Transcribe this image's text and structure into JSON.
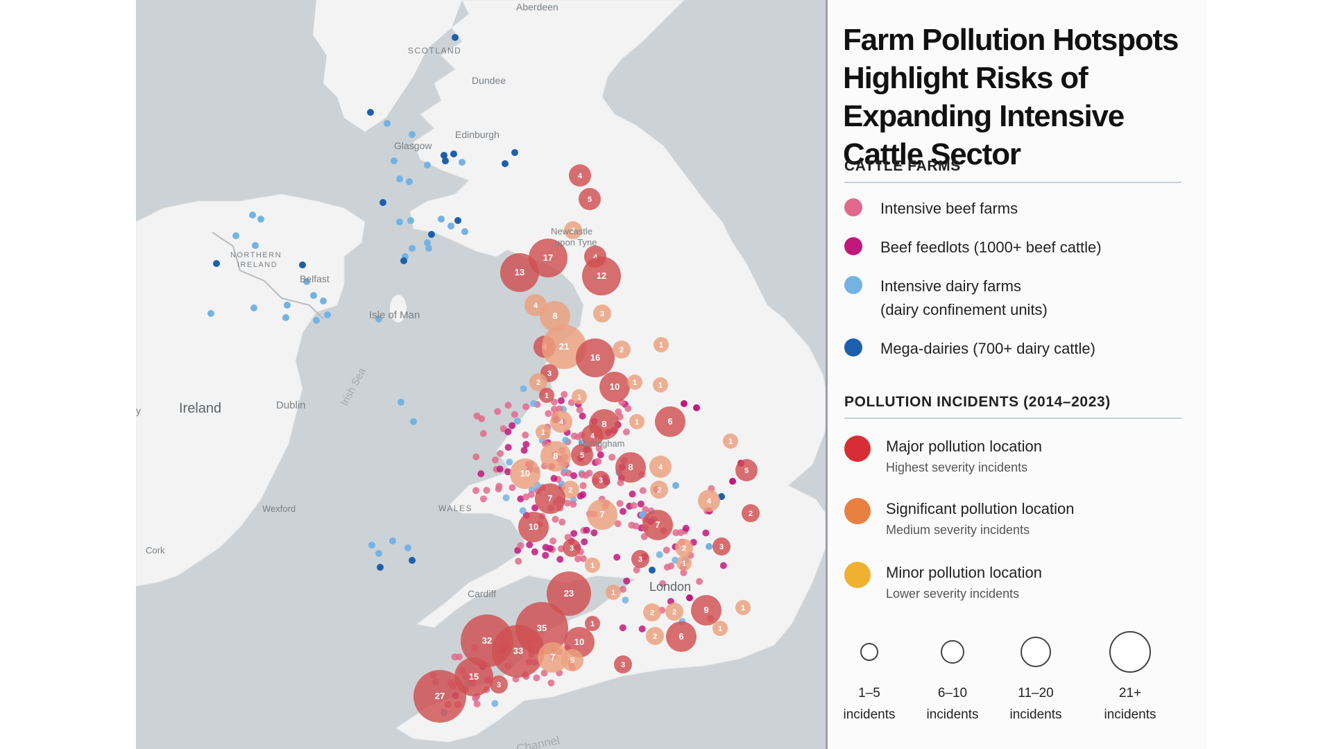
{
  "title": "Farm Pollution Hotspots Highlight Risks of Expanding Intensive Cattle Sector",
  "legend": {
    "cattle_farms_heading": "CATTLE FARMS",
    "cattle_farms": [
      {
        "label": "Intensive beef farms",
        "color": "#e06a8c"
      },
      {
        "label": "Beef feedlots (1000+ beef cattle)",
        "color": "#c2187b"
      },
      {
        "label": "Intensive dairy farms",
        "label2": "(dairy confinement units)",
        "color": "#72b3e4"
      },
      {
        "label": "Mega-dairies (700+ dairy cattle)",
        "color": "#1c5fad"
      }
    ],
    "pollution_heading": "POLLUTION INCIDENTS (2014–2023)",
    "pollution": [
      {
        "label": "Major pollution location",
        "sub": "Highest severity incidents",
        "color": "#d92d35"
      },
      {
        "label": "Significant pollution location",
        "sub": "Medium severity incidents",
        "color": "#e8803f"
      },
      {
        "label": "Minor pollution location",
        "sub": "Lower severity incidents",
        "color": "#f0b030"
      }
    ],
    "sizes": [
      {
        "label1": "1–5",
        "label2": "incidents"
      },
      {
        "label1": "6–10",
        "label2": "incidents"
      },
      {
        "label1": "11–20",
        "label2": "incidents"
      },
      {
        "label1": "21+",
        "label2": "incidents"
      }
    ]
  },
  "map_labels": {
    "aberdeen": "Aberdeen",
    "scotland": "SCOTLAND",
    "dundee": "Dundee",
    "edinburgh": "Edinburgh",
    "glasgow": "Glasgow",
    "newcastle1": "Newcastle",
    "newcastle2": "upon Tyne",
    "northern_ireland1": "NORTHERN",
    "northern_ireland2": "IRELAND",
    "belfast": "Belfast",
    "isle_of_man": "Isle of Man",
    "ireland": "Ireland",
    "dublin": "Dublin",
    "irish_sea": "Irish Sea",
    "nottingham": "Nottingham",
    "wales": "WALES",
    "wexford": "Wexford",
    "cork": "Cork",
    "cardiff": "Cardiff",
    "london": "London",
    "channel": "Channel",
    "edge_y": "y"
  },
  "incidents": [
    {
      "count": 4,
      "severity": "major"
    },
    {
      "count": 5,
      "severity": "major"
    },
    {
      "count": 2,
      "severity": "significant"
    },
    {
      "count": 17,
      "severity": "major"
    },
    {
      "count": 13,
      "severity": "major"
    },
    {
      "count": 4,
      "severity": "major"
    },
    {
      "count": 12,
      "severity": "major"
    },
    {
      "count": 4,
      "severity": "significant"
    },
    {
      "count": 8,
      "severity": "significant"
    },
    {
      "count": 3,
      "severity": "significant"
    },
    {
      "count": 4,
      "severity": "major"
    },
    {
      "count": 21,
      "severity": "significant"
    },
    {
      "count": 16,
      "severity": "major"
    },
    {
      "count": 2,
      "severity": "significant"
    },
    {
      "count": 1,
      "severity": "significant"
    },
    {
      "count": 3,
      "severity": "major"
    },
    {
      "count": 2,
      "severity": "significant"
    },
    {
      "count": 1,
      "severity": "major"
    },
    {
      "count": 1,
      "severity": "significant"
    },
    {
      "count": 10,
      "severity": "major"
    },
    {
      "count": 1,
      "severity": "significant"
    },
    {
      "count": 1,
      "severity": "significant"
    },
    {
      "count": 4,
      "severity": "significant"
    },
    {
      "count": 8,
      "severity": "major"
    },
    {
      "count": 1,
      "severity": "significant"
    },
    {
      "count": 6,
      "severity": "major"
    },
    {
      "count": 1,
      "severity": "significant"
    },
    {
      "count": 4,
      "severity": "major"
    },
    {
      "count": 1,
      "severity": "significant"
    },
    {
      "count": 5,
      "severity": "major"
    },
    {
      "count": 8,
      "severity": "significant"
    },
    {
      "count": 10,
      "severity": "significant"
    },
    {
      "count": 8,
      "severity": "major"
    },
    {
      "count": 4,
      "severity": "significant"
    },
    {
      "count": 5,
      "severity": "major"
    },
    {
      "count": 3,
      "severity": "major"
    },
    {
      "count": 2,
      "severity": "significant"
    },
    {
      "count": 2,
      "severity": "significant"
    },
    {
      "count": 7,
      "severity": "major"
    },
    {
      "count": 4,
      "severity": "significant"
    },
    {
      "count": 7,
      "severity": "significant"
    },
    {
      "count": 2,
      "severity": "major"
    },
    {
      "count": 10,
      "severity": "major"
    },
    {
      "count": 7,
      "severity": "major"
    },
    {
      "count": 3,
      "severity": "major"
    },
    {
      "count": 2,
      "severity": "significant"
    },
    {
      "count": 3,
      "severity": "major"
    },
    {
      "count": 1,
      "severity": "significant"
    },
    {
      "count": 3,
      "severity": "major"
    },
    {
      "count": 1,
      "severity": "significant"
    },
    {
      "count": 23,
      "severity": "major"
    },
    {
      "count": 1,
      "severity": "significant"
    },
    {
      "count": 9,
      "severity": "major"
    },
    {
      "count": 2,
      "severity": "significant"
    },
    {
      "count": 2,
      "severity": "significant"
    },
    {
      "count": 1,
      "severity": "significant"
    },
    {
      "count": 1,
      "severity": "major"
    },
    {
      "count": 35,
      "severity": "major"
    },
    {
      "count": 32,
      "severity": "major"
    },
    {
      "count": 33,
      "severity": "major"
    },
    {
      "count": 10,
      "severity": "major"
    },
    {
      "count": 2,
      "severity": "significant"
    },
    {
      "count": 6,
      "severity": "major"
    },
    {
      "count": 1,
      "severity": "significant"
    },
    {
      "count": 7,
      "severity": "significant"
    },
    {
      "count": 5,
      "severity": "significant"
    },
    {
      "count": 15,
      "severity": "major"
    },
    {
      "count": 3,
      "severity": "major"
    },
    {
      "count": 3,
      "severity": "major"
    },
    {
      "count": 27,
      "severity": "major"
    }
  ]
}
